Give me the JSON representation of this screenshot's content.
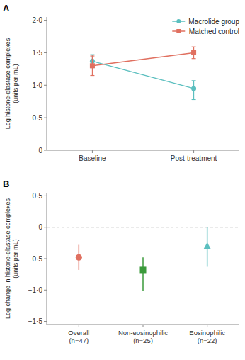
{
  "chart_data": [
    {
      "type": "line",
      "title": "A",
      "y_label": "Log histone-elastase complexes\n(units per mL)",
      "categories": [
        "Baseline",
        "Post-treatment"
      ],
      "series": [
        {
          "name": "Macrolide group",
          "color": "#5bbfbf",
          "marker": "circle",
          "values": [
            1.37,
            0.95
          ],
          "error_low": [
            0.1,
            0.17
          ],
          "error_high": [
            0.1,
            0.12
          ]
        },
        {
          "name": "Matched control",
          "color": "#e07060",
          "marker": "square",
          "values": [
            1.3,
            1.5
          ],
          "error_low": [
            0.15,
            0.09
          ],
          "error_high": [
            0.15,
            0.09
          ]
        }
      ],
      "ylim": [
        0,
        2.05
      ],
      "yticks": [
        0,
        {
          "value": 0.5,
          "label": "0·5"
        },
        {
          "value": 1.0,
          "label": "1·0"
        },
        {
          "value": 1.5,
          "label": "1·5"
        },
        {
          "value": 2.0,
          "label": "2·0"
        }
      ],
      "legend": "upper right"
    },
    {
      "type": "scatter",
      "title": "B",
      "y_label": "Log change in histone-elastase complexes\n(units per mL)",
      "categories": [
        "Overall\n(n=47)",
        "Non-eosinophilic\n(n=25)",
        "Eosinophilic\n(n=22)"
      ],
      "values": [
        -0.48,
        -0.68,
        -0.3
      ],
      "error_low": [
        0.2,
        0.33,
        0.33
      ],
      "error_high": [
        0.2,
        0.2,
        0.3
      ],
      "colors": [
        "#e07060",
        "#3a9a3a",
        "#5bbfbf"
      ],
      "markers": [
        "circle",
        "square",
        "triangle"
      ],
      "ylim": [
        -1.55,
        0.55
      ],
      "yticks": [
        {
          "value": -1.5,
          "label": "−1·5"
        },
        {
          "value": -1.0,
          "label": "−1·0"
        },
        {
          "value": -0.5,
          "label": "−0·5"
        },
        0,
        {
          "value": 0.5,
          "label": "0·5"
        }
      ]
    }
  ]
}
